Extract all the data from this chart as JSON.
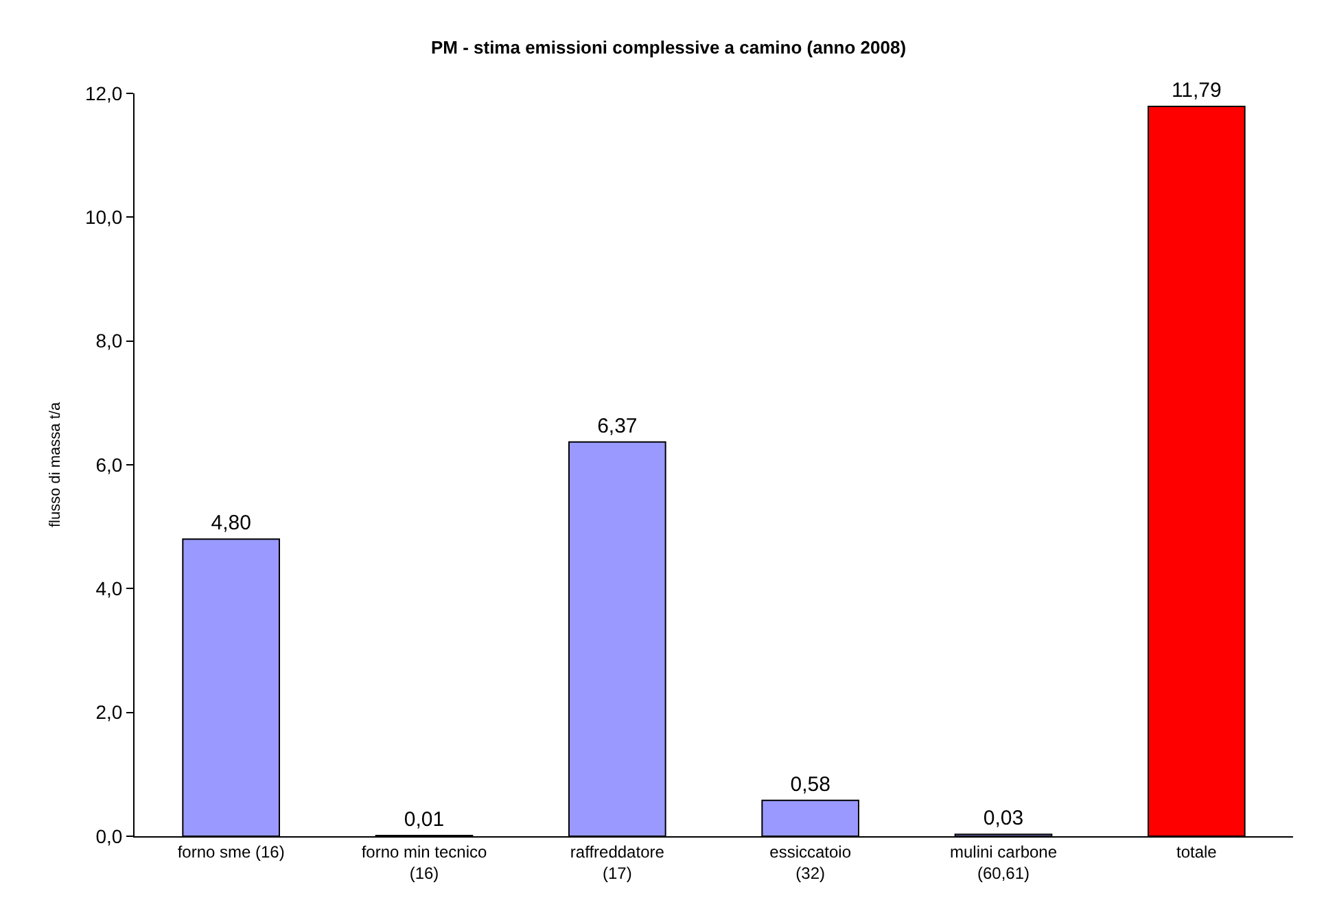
{
  "chart_data": {
    "type": "bar",
    "title": "PM - stima emissioni complessive a camino (anno 2008)",
    "ylabel": "flusso di massa t/a",
    "categories": [
      "forno sme (16)",
      "forno min tecnico\n(16)",
      "raffreddatore\n(17)",
      "essiccatoio\n(32)",
      "mulini carbone\n(60,61)",
      "totale"
    ],
    "values": [
      4.8,
      0.01,
      6.37,
      0.58,
      0.03,
      11.79
    ],
    "colors": [
      "#9999ff",
      "#9999ff",
      "#9999ff",
      "#9999ff",
      "#9999ff",
      "#ff0000"
    ],
    "value_labels": [
      "4,80",
      "0,01",
      "6,37",
      "0,58",
      "0,03",
      "11,79"
    ],
    "ylim": [
      0,
      12
    ],
    "yticks": [
      {
        "value": 0,
        "label": "0,0"
      },
      {
        "value": 2,
        "label": "2,0"
      },
      {
        "value": 4,
        "label": "4,0"
      },
      {
        "value": 6,
        "label": "6,0"
      },
      {
        "value": 8,
        "label": "8,0"
      },
      {
        "value": 10,
        "label": "10,0"
      },
      {
        "value": 12,
        "label": "12,0"
      }
    ],
    "grid": false,
    "legend": false
  }
}
